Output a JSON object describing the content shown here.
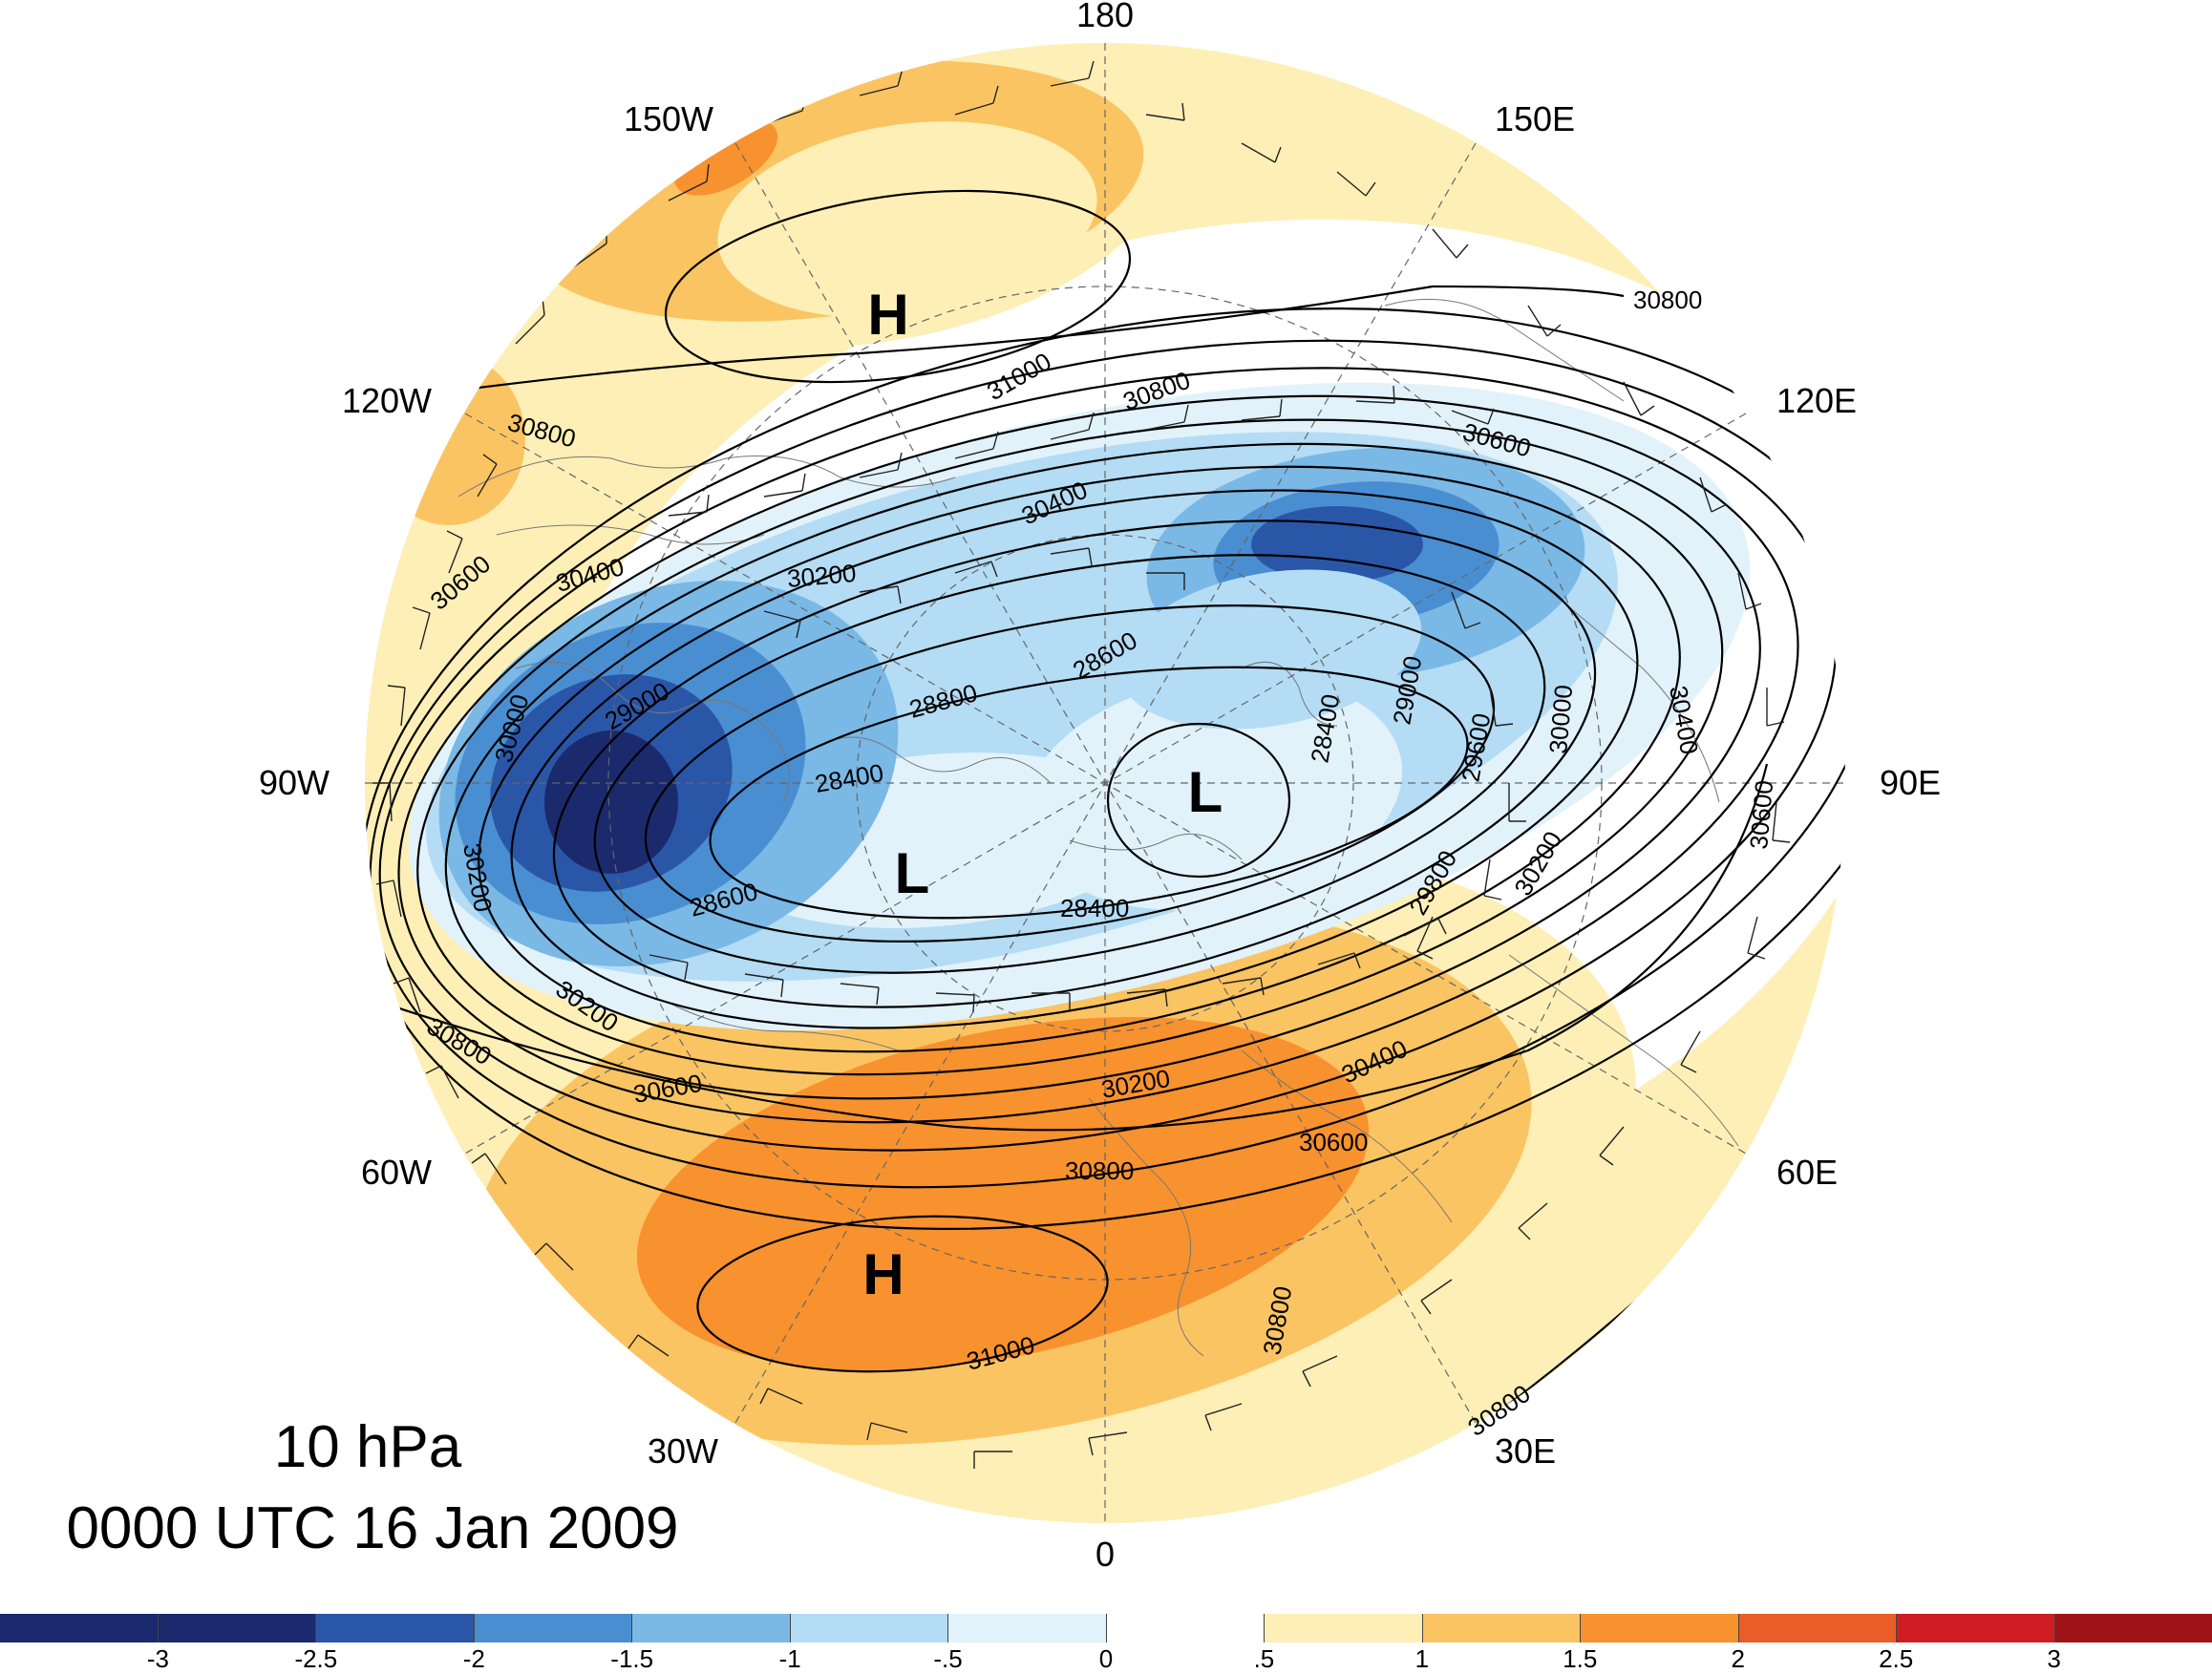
{
  "map": {
    "level_title": "10 hPa",
    "time_title": "0000 UTC 16 Jan 2009",
    "longitude_labels": {
      "lon_180": "180",
      "lon_150w": "150W",
      "lon_150e": "150E",
      "lon_120w": "120W",
      "lon_120e": "120E",
      "lon_90w": "90W",
      "lon_90e": "90E",
      "lon_60w": "60W",
      "lon_60e": "60E",
      "lon_30w": "30W",
      "lon_30e": "30E",
      "lon_0": "0"
    },
    "centers": [
      {
        "label": "H",
        "type": "high"
      },
      {
        "label": "H",
        "type": "high"
      },
      {
        "label": "L",
        "type": "low"
      },
      {
        "label": "L",
        "type": "low"
      }
    ],
    "contour_labels": [
      "30800",
      "31000",
      "30800",
      "30600",
      "30800",
      "30400",
      "30600",
      "30400",
      "30200",
      "30000",
      "29000",
      "28800",
      "28600",
      "28400",
      "28400",
      "28400",
      "29000",
      "29600",
      "30000",
      "30400",
      "30600",
      "30200",
      "29800",
      "30200",
      "28600",
      "30200",
      "30800",
      "30600",
      "30200",
      "30400",
      "30600",
      "30800",
      "31000",
      "30800",
      "30800"
    ],
    "contour_interval_gpm": 200
  },
  "colorbar": {
    "colors": [
      "#1a2a6c",
      "#2a56a8",
      "#4a8ed2",
      "#7ab8e6",
      "#b4dcf4",
      "#e2f2fb",
      "#ffffff",
      "#fdefb6",
      "#fbc462",
      "#f8922e",
      "#ea5d28",
      "#cf1c23",
      "#9e1418"
    ],
    "labels": [
      "-3",
      "-2.5",
      "-2",
      "-1.5",
      "-1",
      "-.5",
      "0",
      ".5",
      "1",
      "1.5",
      "2",
      "2.5",
      "3"
    ]
  }
}
